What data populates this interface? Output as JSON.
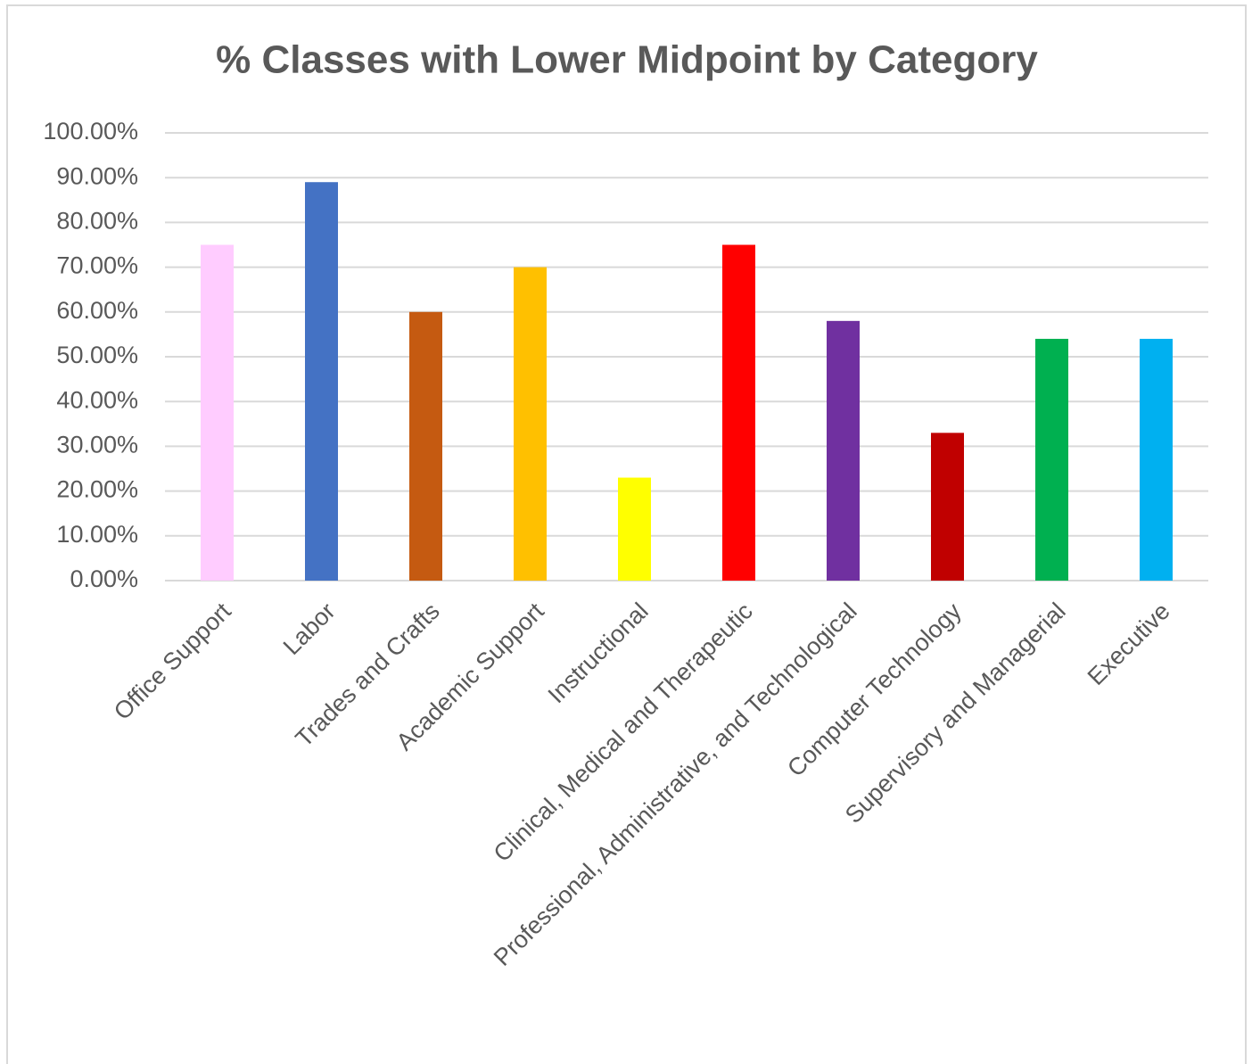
{
  "chart_data": {
    "type": "bar",
    "title": "% Classes with Lower Midpoint by Category",
    "categories": [
      "Office Support",
      "Labor",
      "Trades and Crafts",
      "Academic Support",
      "Instructional",
      "Clinical, Medical and Therapeutic",
      "Professional, Administrative, and Technological",
      "Computer Technology",
      "Supervisory and Managerial",
      "Executive"
    ],
    "values": [
      75,
      89,
      60,
      70,
      23,
      75,
      58,
      33,
      54,
      54
    ],
    "colors": [
      "#ffccff",
      "#4472c4",
      "#c55a11",
      "#ffc000",
      "#ffff00",
      "#ff0000",
      "#7030a0",
      "#c00000",
      "#00b050",
      "#00b0f0"
    ],
    "ylim": [
      0,
      100
    ],
    "yticks": [
      {
        "value": 0,
        "label": "0.00%"
      },
      {
        "value": 10,
        "label": "10.00%"
      },
      {
        "value": 20,
        "label": "20.00%"
      },
      {
        "value": 30,
        "label": "30.00%"
      },
      {
        "value": 40,
        "label": "40.00%"
      },
      {
        "value": 50,
        "label": "50.00%"
      },
      {
        "value": 60,
        "label": "60.00%"
      },
      {
        "value": 70,
        "label": "70.00%"
      },
      {
        "value": 80,
        "label": "80.00%"
      },
      {
        "value": 90,
        "label": "90.00%"
      },
      {
        "value": 100,
        "label": "100.00%"
      }
    ],
    "grid": true
  }
}
